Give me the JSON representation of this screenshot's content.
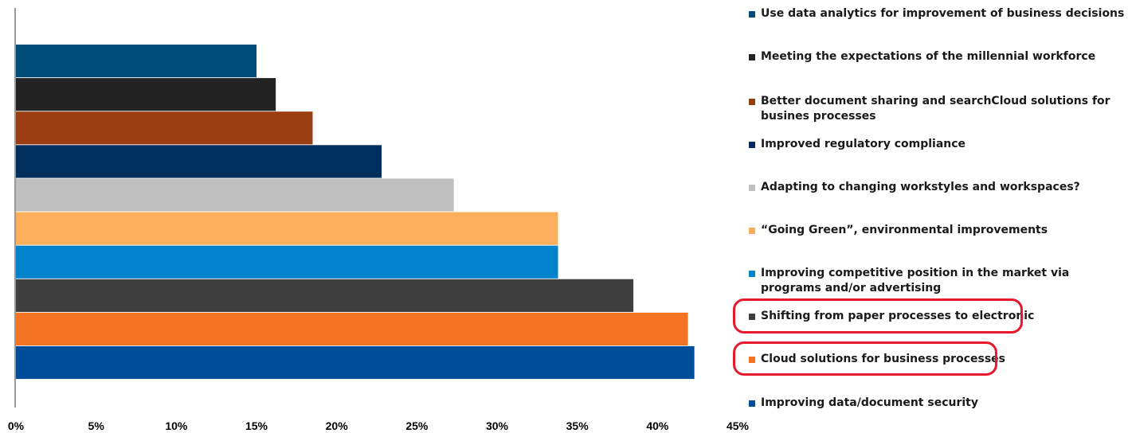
{
  "chart_data": {
    "type": "bar",
    "orientation": "horizontal",
    "categories": [
      "Use data analytics for improvement of business decisions",
      "Meeting the expectations of the millennial workforce",
      "Better document sharing and searchCloud solutions for busines processes",
      "Improved regulatory compliance",
      "Adapting to changing workstyles and workspaces?",
      "“Going Green”, environmental improvements",
      "Improving competitive position in the market via programs and/or advertising",
      "Shifting from paper processes to electronic",
      "Cloud solutions for business processes",
      "Improving data/document security"
    ],
    "values": [
      15.0,
      16.2,
      18.5,
      22.8,
      27.3,
      33.8,
      33.8,
      38.5,
      41.9,
      42.3
    ],
    "colors": [
      "#004d7a",
      "#232323",
      "#9a3d12",
      "#002f5e",
      "#bfbfbf",
      "#fbaf5d",
      "#0083cb",
      "#3f3f3f",
      "#f47424",
      "#004e9a"
    ],
    "xlim": [
      0,
      45
    ],
    "x_ticks": [
      "0%",
      "5%",
      "10%",
      "15%",
      "20%",
      "25%",
      "30%",
      "35%",
      "40%",
      "45%"
    ],
    "legend_position": "right",
    "highlighted_legend_entries": [
      "Shifting from paper processes to electronic",
      "Cloud solutions for business processes"
    ],
    "highlight_color": "#e8192c"
  }
}
